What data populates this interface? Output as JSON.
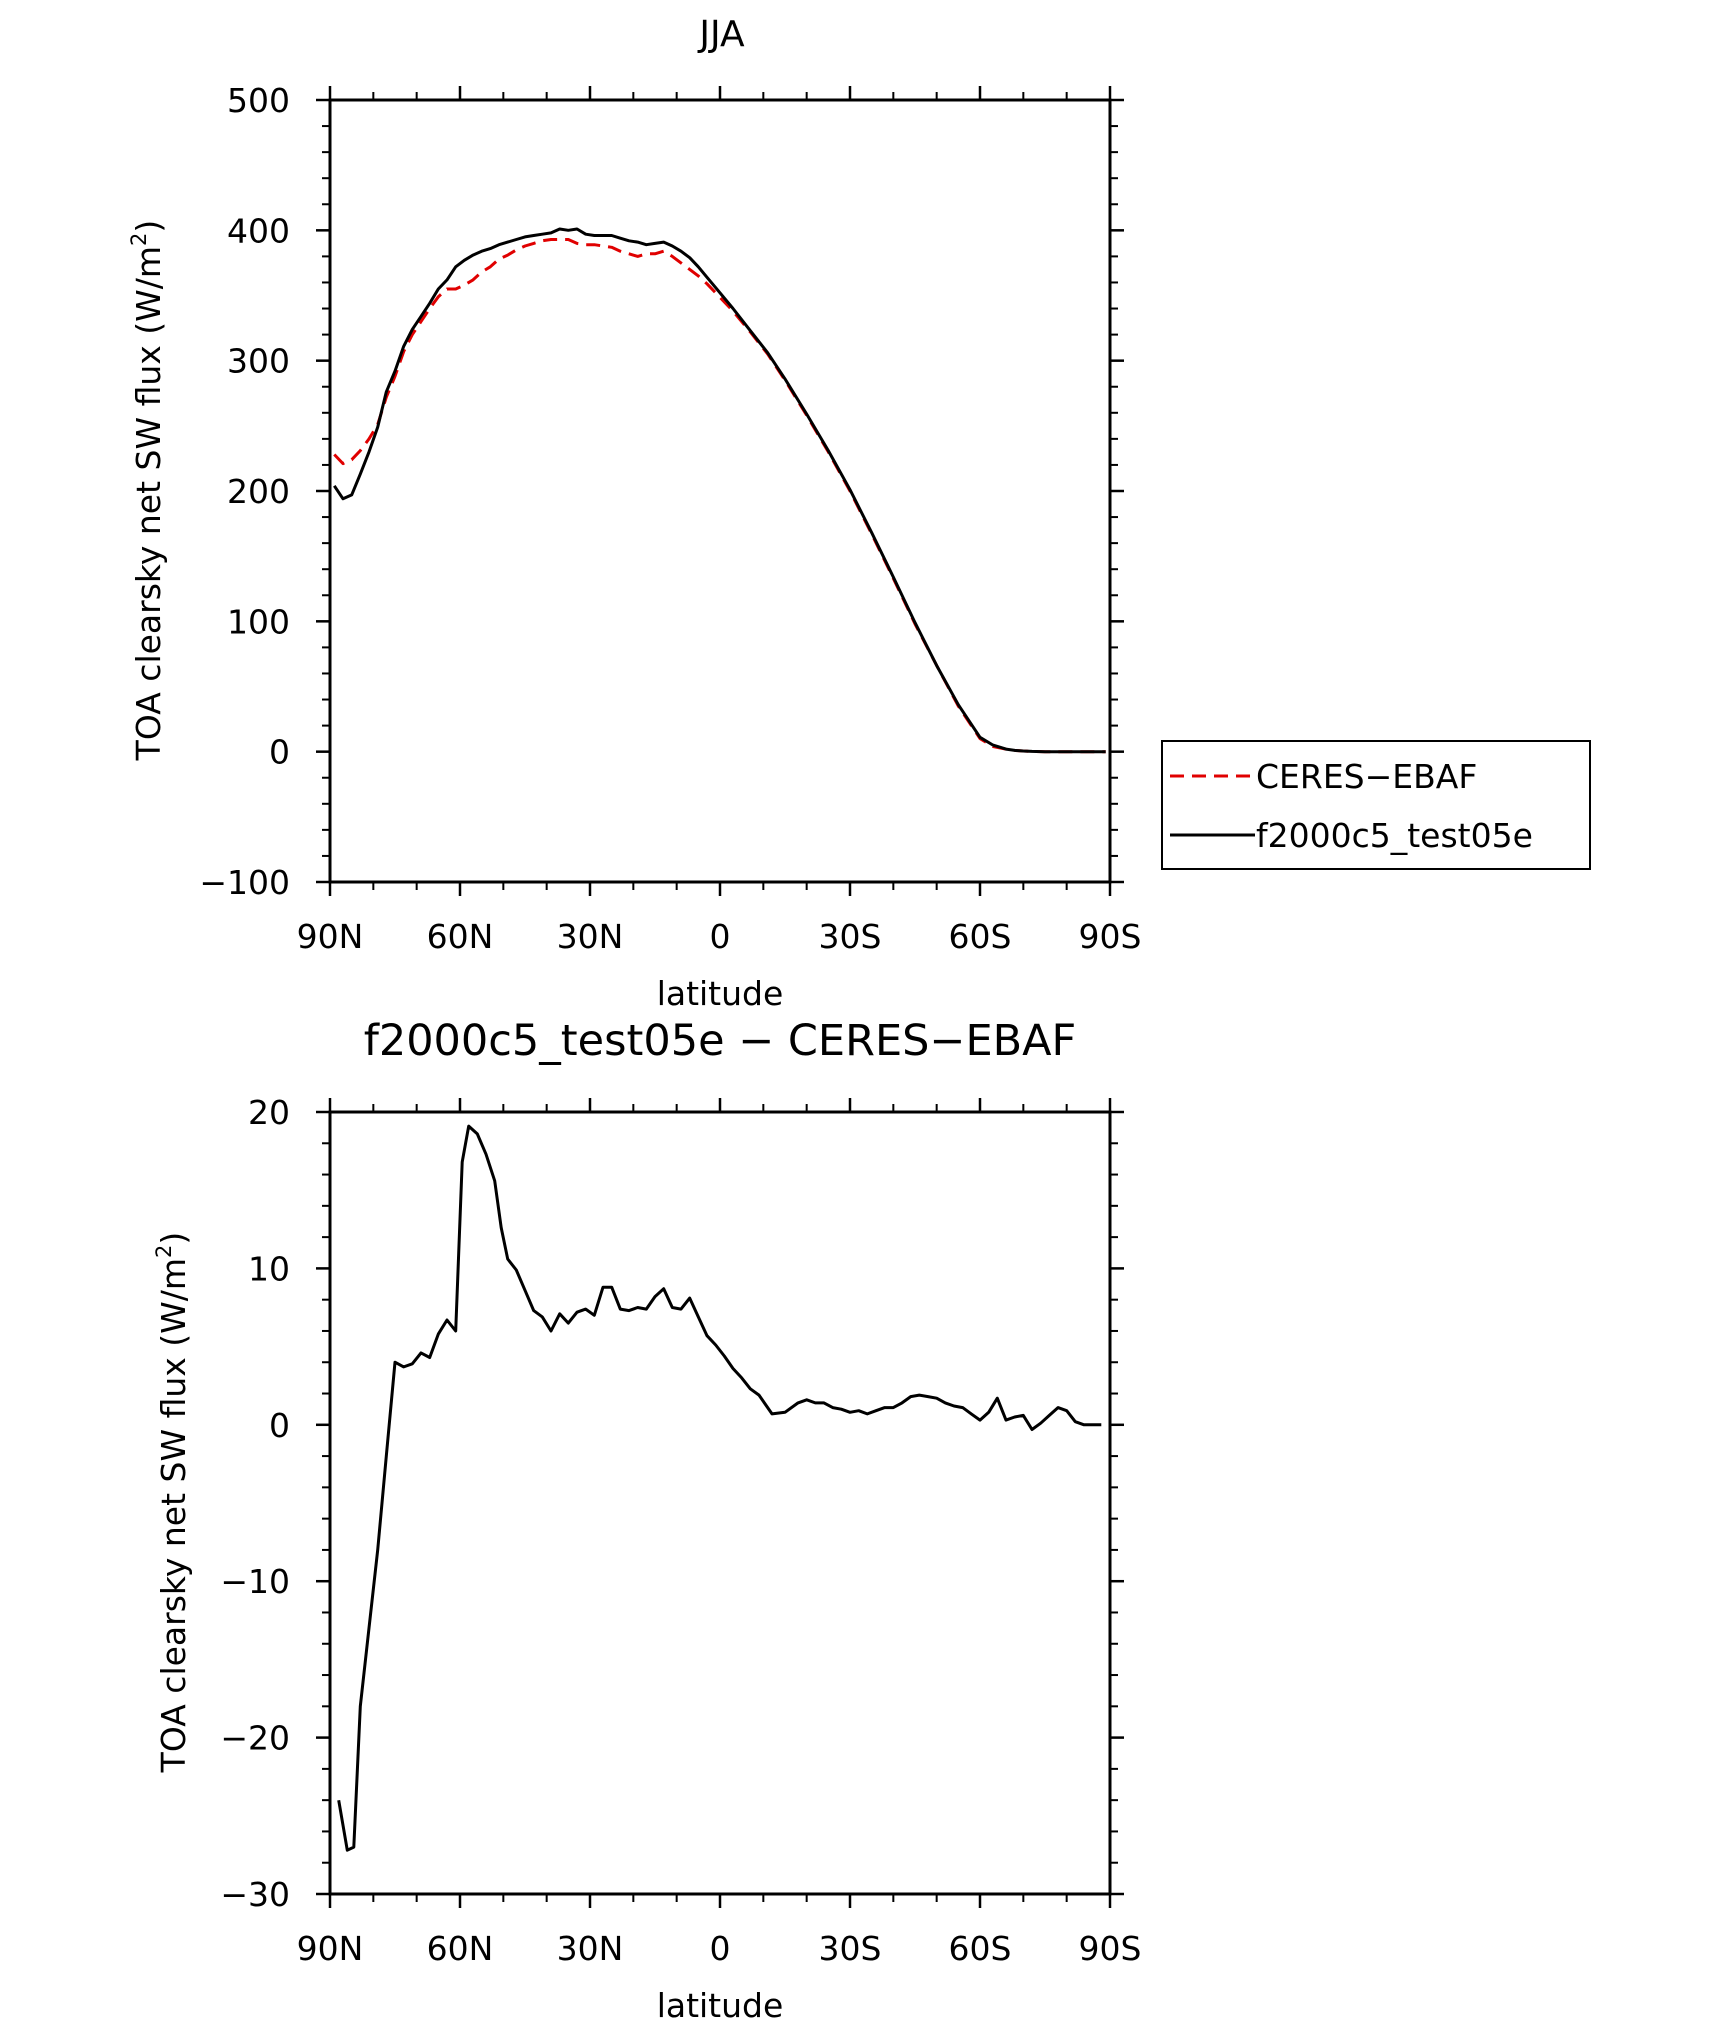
{
  "chart_data": [
    {
      "type": "line",
      "title": "JJA",
      "xlabel": "latitude",
      "ylabel": "TOA clearsky net SW flux (W/m",
      "ylabel_sup": "2",
      "ylabel_close": ")",
      "xlim": [
        90,
        -90
      ],
      "ylim": [
        -100,
        500
      ],
      "yticks": [
        -100,
        0,
        100,
        200,
        300,
        400,
        500
      ],
      "ytick_labels": [
        "−100",
        "0",
        "100",
        "200",
        "300",
        "400",
        "500"
      ],
      "xticks": [
        90,
        60,
        30,
        0,
        -30,
        -60,
        -90
      ],
      "xtick_labels": [
        "90N",
        "60N",
        "30N",
        "0",
        "30S",
        "60S",
        "90S"
      ],
      "grid": false,
      "legend_position": "right",
      "series": [
        {
          "name": "CERES−EBAF",
          "color": "#e00000",
          "dash": "dashed",
          "x": [
            89,
            87,
            85,
            83,
            81,
            79,
            77,
            75,
            73,
            71,
            69,
            67,
            65,
            63,
            61,
            59,
            57,
            55,
            53,
            51,
            49,
            47,
            45,
            43,
            41,
            39,
            37,
            35,
            33,
            31,
            29,
            27,
            25,
            23,
            21,
            19,
            17,
            15,
            13,
            11,
            9,
            7,
            5,
            3,
            1,
            -3,
            -7,
            -11,
            -15,
            -20,
            -25,
            -30,
            -35,
            -40,
            -45,
            -50,
            -55,
            -60,
            -63,
            -66,
            -68,
            -70,
            -72,
            -75,
            -80,
            -85,
            -89
          ],
          "y": [
            228,
            221,
            224,
            231,
            240,
            251,
            272,
            288,
            307,
            320,
            330,
            340,
            349,
            355,
            355,
            358,
            362,
            368,
            372,
            378,
            381,
            385,
            388,
            390,
            392,
            393,
            393,
            393,
            390,
            389,
            389,
            388,
            387,
            384,
            382,
            380,
            382,
            382,
            384,
            380,
            375,
            370,
            365,
            359,
            352,
            338,
            322,
            305,
            285,
            258,
            230,
            200,
            167,
            133,
            98,
            66,
            35,
            10,
            4,
            2,
            1,
            0.5,
            0.2,
            0,
            0,
            0,
            0
          ]
        },
        {
          "name": "f2000c5_test05e",
          "color": "#000000",
          "dash": "solid",
          "x": [
            89,
            87,
            85,
            83,
            81,
            79,
            77,
            75,
            73,
            71,
            69,
            67,
            65,
            63,
            61,
            59,
            57,
            55,
            53,
            51,
            49,
            47,
            45,
            43,
            41,
            39,
            37,
            35,
            33,
            31,
            29,
            27,
            25,
            23,
            21,
            19,
            17,
            15,
            13,
            11,
            9,
            7,
            5,
            3,
            1,
            -3,
            -7,
            -11,
            -15,
            -20,
            -25,
            -30,
            -35,
            -40,
            -45,
            -50,
            -55,
            -60,
            -63,
            -66,
            -68,
            -70,
            -72,
            -75,
            -80,
            -85,
            -89
          ],
          "y": [
            204,
            194,
            197,
            213,
            230,
            249,
            276,
            292,
            311,
            324,
            334,
            344,
            355,
            362,
            372,
            377,
            381,
            384,
            386,
            389,
            391,
            393,
            395,
            396,
            397,
            398,
            401,
            400,
            401,
            397,
            396,
            396,
            396,
            394,
            392,
            391,
            389,
            390,
            391,
            388,
            384,
            379,
            372,
            364,
            356,
            340,
            323,
            306,
            286,
            259,
            231,
            201,
            168,
            134,
            99,
            66,
            36,
            11,
            5,
            2,
            1,
            0.5,
            0.2,
            0,
            0,
            0,
            0
          ]
        }
      ]
    },
    {
      "type": "line",
      "title": "f2000c5_test05e − CERES−EBAF",
      "xlabel": "latitude",
      "ylabel": "TOA clearsky net SW flux (W/m",
      "ylabel_sup": "2",
      "ylabel_close": ")",
      "xlim": [
        90,
        -90
      ],
      "ylim": [
        -30,
        20
      ],
      "yticks": [
        -30,
        -20,
        -10,
        0,
        10,
        20
      ],
      "ytick_labels": [
        "−30",
        "−20",
        "−10",
        "0",
        "10",
        "20"
      ],
      "xticks": [
        90,
        60,
        30,
        0,
        -30,
        -60,
        -90
      ],
      "xtick_labels": [
        "90N",
        "60N",
        "30N",
        "0",
        "30S",
        "60S",
        "90S"
      ],
      "grid": false,
      "series": [
        {
          "color": "#000000",
          "dash": "solid",
          "x": [
            88,
            86,
            84.5,
            83,
            81,
            79,
            77,
            75,
            73,
            71,
            69,
            67,
            65,
            63,
            61,
            59.5,
            58,
            56,
            54,
            52,
            50.5,
            49,
            47,
            45,
            43,
            41,
            39,
            37,
            35,
            33,
            31,
            29,
            27,
            25,
            23,
            21,
            19,
            17,
            15,
            13,
            11,
            9,
            7,
            5,
            3,
            1,
            -1,
            -3,
            -5,
            -7,
            -9,
            -12,
            -15,
            -18,
            -20,
            -22,
            -24,
            -26,
            -28,
            -30,
            -32,
            -34,
            -36,
            -38,
            -40,
            -42,
            -44,
            -46,
            -48,
            -50,
            -52,
            -54,
            -56,
            -58,
            -60,
            -62,
            -64,
            -66,
            -68,
            -70,
            -72,
            -74,
            -76,
            -78,
            -80,
            -82,
            -84,
            -86,
            -88
          ],
          "y": [
            -24,
            -27.2,
            -27,
            -18,
            -13,
            -8,
            -2,
            4,
            3.7,
            3.9,
            4.6,
            4.3,
            5.8,
            6.7,
            6.0,
            16.8,
            19.1,
            18.6,
            17.3,
            15.6,
            12.6,
            10.6,
            9.9,
            8.6,
            7.3,
            6.9,
            6.0,
            7.1,
            6.5,
            7.2,
            7.4,
            7.0,
            8.8,
            8.8,
            7.4,
            7.3,
            7.5,
            7.4,
            8.2,
            8.7,
            7.5,
            7.4,
            8.1,
            6.9,
            5.7,
            5.1,
            4.4,
            3.6,
            3.0,
            2.3,
            1.9,
            0.7,
            0.8,
            1.4,
            1.6,
            1.4,
            1.4,
            1.1,
            1.0,
            0.8,
            0.9,
            0.7,
            0.9,
            1.1,
            1.1,
            1.4,
            1.8,
            1.9,
            1.8,
            1.7,
            1.4,
            1.2,
            1.1,
            0.7,
            0.3,
            0.8,
            1.7,
            0.3,
            0.5,
            0.6,
            -0.3,
            0.1,
            0.6,
            1.1,
            0.9,
            0.2,
            0.0,
            0.0,
            0.0
          ]
        }
      ]
    }
  ]
}
